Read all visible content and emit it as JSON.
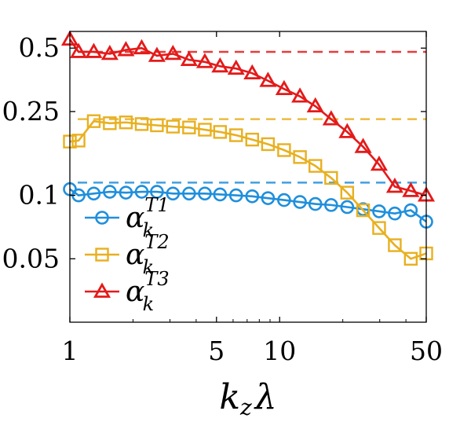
{
  "chart_data": {
    "type": "line",
    "title": "",
    "xlabel": "k",
    "xlabel_sub": "z",
    "xlabel_suffix": "λ",
    "ylabel": "",
    "xscale": "log",
    "yscale": "log",
    "xlim": [
      1,
      50
    ],
    "ylim": [
      0.025,
      0.6
    ],
    "xticks": [
      1,
      5,
      10,
      50
    ],
    "xtick_labels": [
      "1",
      "5",
      "10",
      "50"
    ],
    "yticks": [
      0.05,
      0.1,
      0.25,
      0.5
    ],
    "ytick_labels": [
      "0.05",
      "0.1",
      "0.25",
      "0.5"
    ],
    "grid": false,
    "legend_position": "bottom-left",
    "series": [
      {
        "name": "α_k^T1",
        "legend_base": "α",
        "legend_sub": "k",
        "legend_sup": "T1",
        "color": "#1f8fdc",
        "marker": "circle",
        "x": [
          1,
          1.1,
          1.3,
          1.55,
          1.85,
          2.2,
          2.6,
          3.1,
          3.7,
          4.4,
          5.2,
          6.2,
          7.4,
          8.8,
          10.5,
          12.5,
          14.8,
          17.6,
          21,
          25,
          29.8,
          35.4,
          42.2,
          50
        ],
        "values": [
          0.107,
          0.1,
          0.102,
          0.104,
          0.103,
          0.104,
          0.104,
          0.102,
          0.102,
          0.102,
          0.101,
          0.1,
          0.099,
          0.097,
          0.095,
          0.093,
          0.091,
          0.09,
          0.088,
          0.086,
          0.084,
          0.082,
          0.085,
          0.075
        ],
        "reference": 0.115
      },
      {
        "name": "α_k^T2",
        "legend_base": "α",
        "legend_sub": "k",
        "legend_sup": "T2",
        "color": "#e8b020",
        "marker": "square",
        "x": [
          1,
          1.1,
          1.3,
          1.55,
          1.85,
          2.2,
          2.6,
          3.1,
          3.7,
          4.4,
          5.2,
          6.2,
          7.4,
          8.8,
          10.5,
          12.5,
          14.8,
          17.6,
          21,
          25,
          29.8,
          35.4,
          42.2,
          50
        ],
        "values": [
          0.18,
          0.182,
          0.225,
          0.22,
          0.222,
          0.218,
          0.215,
          0.212,
          0.21,
          0.205,
          0.2,
          0.193,
          0.184,
          0.175,
          0.164,
          0.152,
          0.138,
          0.121,
          0.103,
          0.085,
          0.07,
          0.058,
          0.05,
          0.053
        ],
        "reference": 0.23
      },
      {
        "name": "α_k^T3",
        "legend_base": "α",
        "legend_sub": "k",
        "legend_sup": "T3",
        "color": "#e41a1a",
        "marker": "triangle",
        "x": [
          1,
          1.1,
          1.3,
          1.55,
          1.85,
          2.2,
          2.6,
          3.1,
          3.7,
          4.4,
          5.2,
          6.2,
          7.4,
          8.8,
          10.5,
          12.5,
          14.8,
          17.6,
          21,
          25,
          29.8,
          35.4,
          42.2,
          50
        ],
        "values": [
          0.55,
          0.48,
          0.48,
          0.47,
          0.49,
          0.5,
          0.46,
          0.47,
          0.44,
          0.43,
          0.41,
          0.4,
          0.38,
          0.35,
          0.32,
          0.295,
          0.265,
          0.23,
          0.2,
          0.17,
          0.14,
          0.11,
          0.105,
          0.1
        ],
        "reference": 0.48
      }
    ]
  }
}
